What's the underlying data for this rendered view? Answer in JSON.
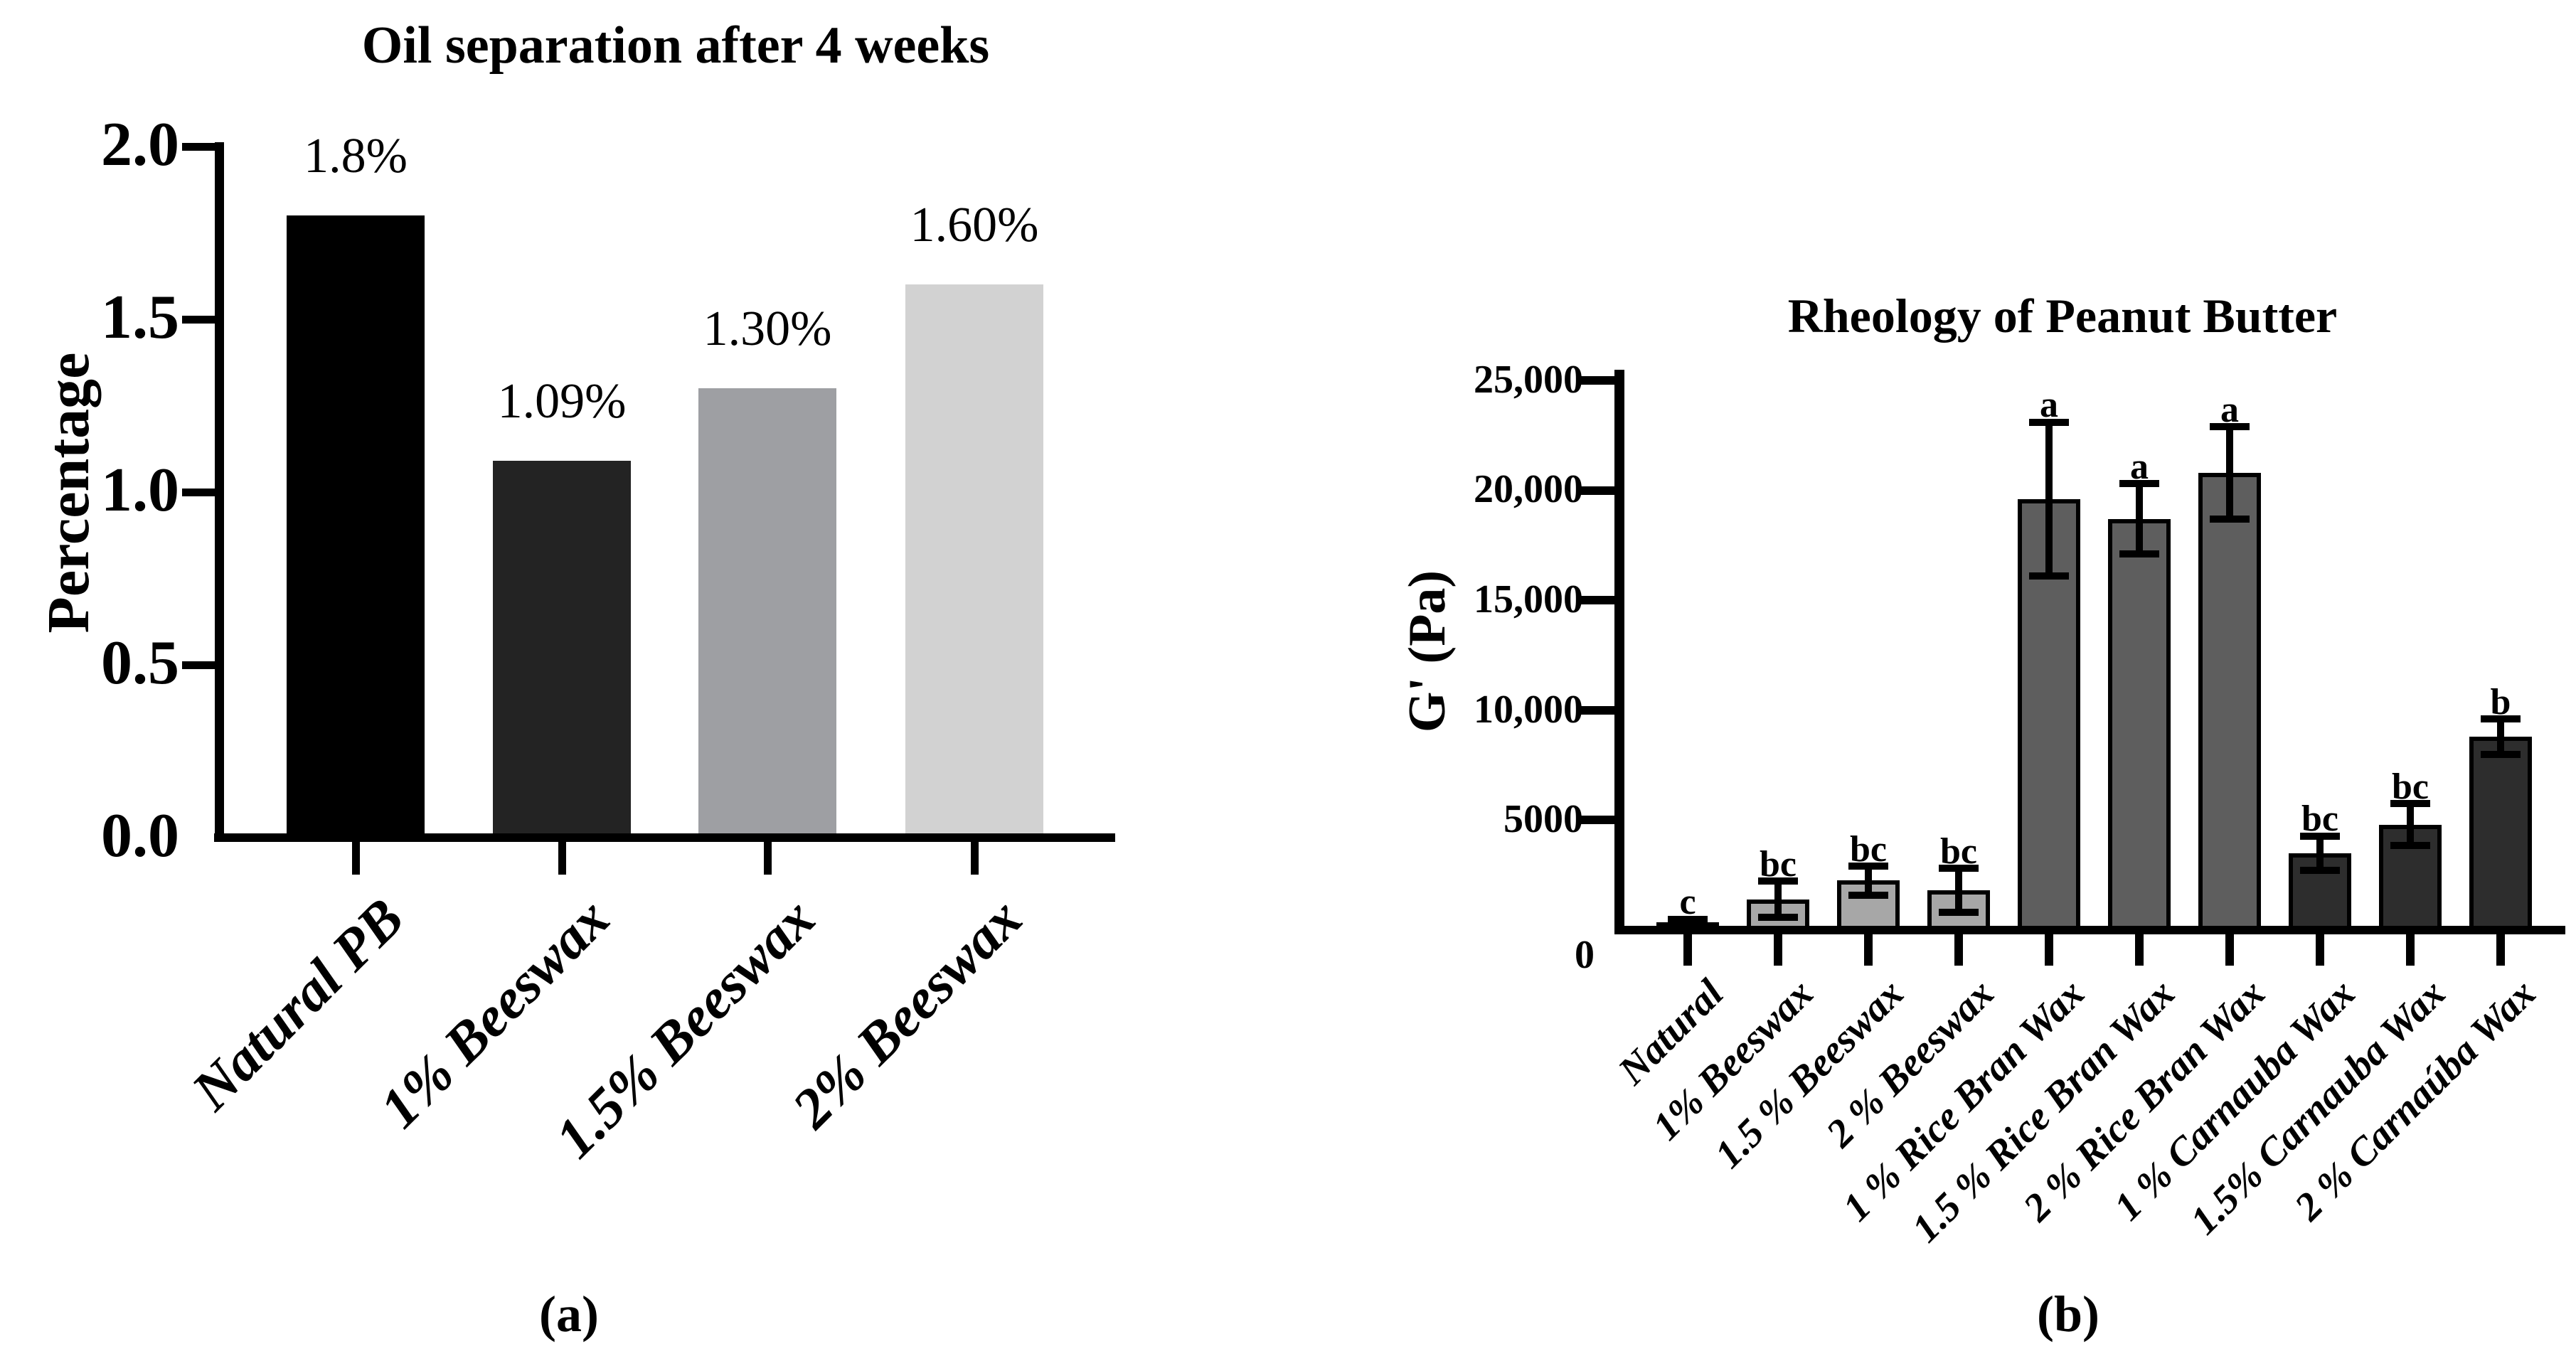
{
  "figure": {
    "background": "#ffffff",
    "text_color": "#000000",
    "captions": {
      "a": "(a)",
      "b": "(b)"
    }
  },
  "chart_data": [
    {
      "id": "oil-separation",
      "type": "bar",
      "title": "Oil separation after 4 weeks",
      "xlabel": "",
      "ylabel": "Percentage",
      "ylim": [
        0,
        2.0
      ],
      "grid": false,
      "legend": null,
      "yticks": [
        {
          "value": 0,
          "label": "0.0"
        },
        {
          "value": 0.5,
          "label": "0.5"
        },
        {
          "value": 1.0,
          "label": "1.0"
        },
        {
          "value": 1.5,
          "label": "1.5"
        },
        {
          "value": 2.0,
          "label": "2.0"
        }
      ],
      "categories": [
        "Natural PB",
        "1% Beeswax",
        "1.5% Beeswax",
        "2% Beeswax"
      ],
      "values": [
        1.8,
        1.09,
        1.3,
        1.6
      ],
      "bar_value_labels": [
        "1.8%",
        "1.09%",
        "1.30%",
        "1.60%"
      ],
      "bar_colors": [
        "#000000",
        "#232323",
        "#9e9fa3",
        "#d2d2d2"
      ]
    },
    {
      "id": "rheology",
      "type": "bar",
      "title": "Rheology of Peanut Butter",
      "xlabel": "",
      "ylabel": "G' (Pa)",
      "ylim": [
        0,
        25000
      ],
      "grid": false,
      "legend": null,
      "yticks": [
        {
          "value": 0,
          "label": "0"
        },
        {
          "value": 5000,
          "label": "5000"
        },
        {
          "value": 10000,
          "label": "10,000"
        },
        {
          "value": 15000,
          "label": "15,000"
        },
        {
          "value": 20000,
          "label": "20,000"
        },
        {
          "value": 25000,
          "label": "25,000"
        }
      ],
      "categories": [
        "Natural",
        "1% Beeswax",
        "1.5 % Beeswax",
        "2 % Beeswax",
        "1 % Rice Bran Wax",
        "1.5 % Rice Bran Wax",
        "2 % Rice Bran Wax",
        "1 % Carnauba Wax",
        "1.5% Carnauba Wax",
        "2 % Carnaúba Wax"
      ],
      "values": [
        350,
        1400,
        2250,
        1800,
        19600,
        18700,
        20800,
        3500,
        4800,
        8800
      ],
      "errors_sd": [
        150,
        830,
        650,
        1000,
        3500,
        1600,
        2100,
        780,
        950,
        800
      ],
      "significance_letters": [
        "c",
        "bc",
        "bc",
        "bc",
        "a",
        "a",
        "a",
        "bc",
        "bc",
        "b"
      ],
      "bar_colors": [
        "#3c3c3c",
        "#a7a7a7",
        "#a7a7a7",
        "#a7a7a7",
        "#5e5e5e",
        "#5e5e5e",
        "#5e5e5e",
        "#2d2d2d",
        "#2d2d2d",
        "#2d2d2d"
      ]
    }
  ]
}
